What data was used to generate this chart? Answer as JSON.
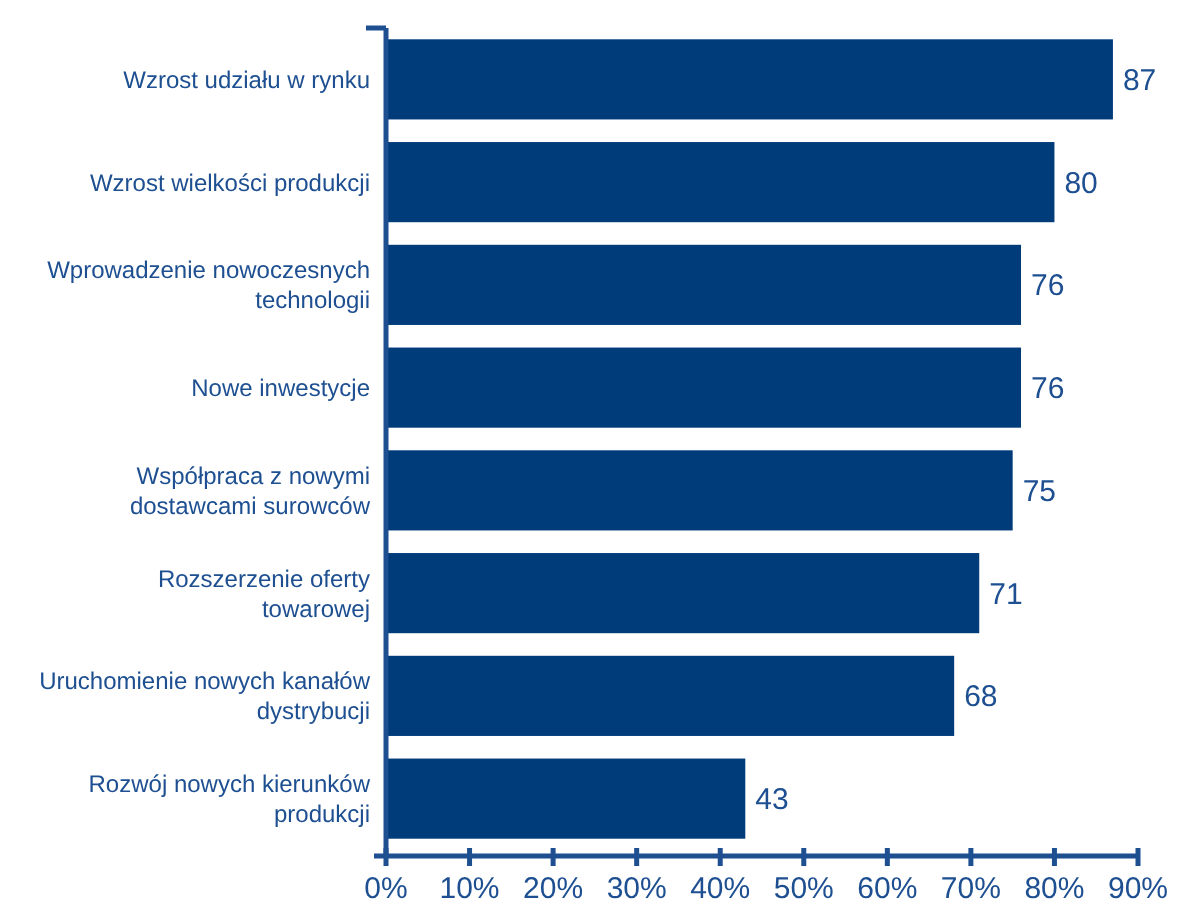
{
  "chart_data": {
    "type": "bar",
    "orientation": "horizontal",
    "categories": [
      "Wzrost udziału w rynku",
      "Wzrost wielkości produkcji",
      "Wprowadzenie nowoczesnych technologii",
      "Nowe inwestycje",
      "Współpraca z nowymi dostawcami surowców",
      "Rozszerzenie oferty towarowej",
      "Uruchomienie nowych kanałów dystrybucji",
      "Rozwój nowych kierunków produkcji"
    ],
    "values": [
      87,
      80,
      76,
      76,
      75,
      71,
      68,
      43
    ],
    "color": "#003b7a",
    "xlim": [
      0,
      90
    ],
    "xticks": [
      {
        "value": 0,
        "label": "0%"
      },
      {
        "value": 10,
        "label": "10%"
      },
      {
        "value": 20,
        "label": "20%"
      },
      {
        "value": 30,
        "label": "30%"
      },
      {
        "value": 40,
        "label": "40%"
      },
      {
        "value": 50,
        "label": "50%"
      },
      {
        "value": 60,
        "label": "60%"
      },
      {
        "value": 70,
        "label": "70%"
      },
      {
        "value": 80,
        "label": "80%"
      },
      {
        "value": 90,
        "label": "90%"
      }
    ],
    "data_labels": true
  }
}
